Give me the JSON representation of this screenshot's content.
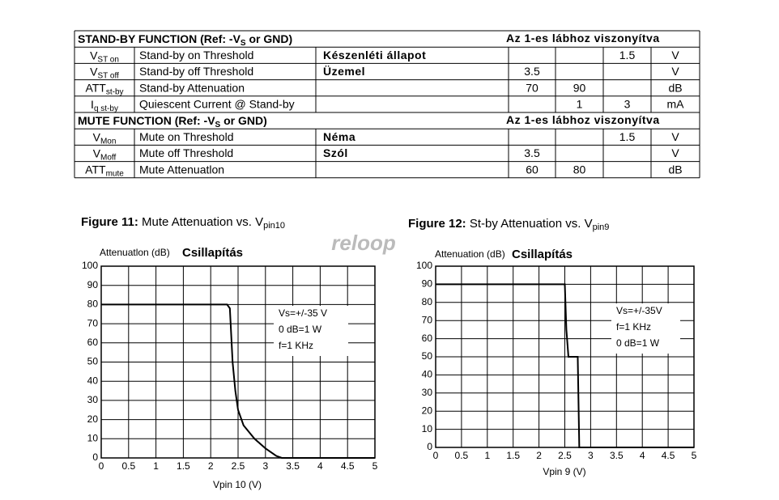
{
  "table": {
    "sections": [
      {
        "title": [
          "STAND-BY FUNCTION (Ref: -V",
          "S",
          " or GND)"
        ],
        "note": "Az 1-es lábhoz viszonyítva",
        "rows": [
          {
            "symbol": [
              "V",
              "ST on"
            ],
            "parameter": "Stand-by on Threshold",
            "note": "Készenléti állapot",
            "min": null,
            "typ": null,
            "max": 1.5,
            "unit": "V"
          },
          {
            "symbol": [
              "V",
              "ST off"
            ],
            "parameter": "Stand-by off Threshold",
            "note": "Üzemel",
            "min": 3.5,
            "typ": null,
            "max": null,
            "unit": "V"
          },
          {
            "symbol": [
              "ATT",
              "st-by"
            ],
            "parameter": "Stand-by Attenuation",
            "note": null,
            "min": 70,
            "typ": 90,
            "max": null,
            "unit": "dB"
          },
          {
            "symbol": [
              "I",
              "q st-by"
            ],
            "parameter": "Quiescent Current @ Stand-by",
            "note": null,
            "min": null,
            "typ": 1,
            "max": 3,
            "unit": "mA"
          }
        ]
      },
      {
        "title": [
          "MUTE FUNCTION (Ref: -V",
          "S",
          " or GND)"
        ],
        "note": "Az 1-es lábhoz viszonyítva",
        "rows": [
          {
            "symbol": [
              "V",
              "Mon"
            ],
            "parameter": "Mute on Threshold",
            "note": "Néma",
            "min": null,
            "typ": null,
            "max": 1.5,
            "unit": "V"
          },
          {
            "symbol": [
              "V",
              "Moff"
            ],
            "parameter": "Mute off Threshold",
            "note": "Szól",
            "min": 3.5,
            "typ": null,
            "max": null,
            "unit": "V"
          },
          {
            "symbol": [
              "ATT",
              "mute"
            ],
            "parameter": "Mute Attenuatlon",
            "note": null,
            "min": 60,
            "typ": 80,
            "max": null,
            "unit": "dB"
          }
        ]
      }
    ]
  },
  "watermark": "reloop",
  "chart_data": [
    {
      "type": "line",
      "title": [
        "Figure 11:",
        " Mute Attenuation vs. V",
        "pin10"
      ],
      "ylabel": "Attenuatlon  (dB)",
      "ylabel_hu": "Csillapítás",
      "xlabel": "Vpin 10 (V)",
      "annotations": [
        "Vs=+/-35 V",
        "0 dB=1 W",
        "f=1 KHz"
      ],
      "x": [
        0,
        2.3,
        2.35,
        2.4,
        2.45,
        2.5,
        2.6,
        2.8,
        3.0,
        3.2,
        3.3,
        5
      ],
      "values": [
        80,
        80,
        78,
        50,
        35,
        25,
        17,
        10,
        5,
        1,
        0,
        0
      ],
      "color": "#000000",
      "xlim": [
        0,
        5
      ],
      "xticks": [
        0,
        0.5,
        1,
        1.5,
        2,
        2.5,
        3,
        3.5,
        4,
        4.5,
        5
      ],
      "ylim": [
        0,
        100
      ],
      "yticks": [
        0,
        10,
        20,
        30,
        40,
        50,
        60,
        70,
        80,
        90,
        100
      ],
      "grid": true
    },
    {
      "type": "line",
      "title": [
        "Figure 12:",
        " St-by Attenuation vs. V",
        "pin9"
      ],
      "ylabel": "Attenuation  (dB)",
      "ylabel_hu": "Csillapítás",
      "xlabel": "Vpin 9  (V)",
      "annotations": [
        "Vs=+/-35V",
        "f=1 KHz",
        "0 dB=1 W"
      ],
      "x": [
        0,
        2.5,
        2.53,
        2.57,
        2.75,
        2.78,
        5
      ],
      "values": [
        90,
        90,
        65,
        50,
        50,
        0,
        0
      ],
      "color": "#000000",
      "xlim": [
        0,
        5
      ],
      "xticks": [
        0,
        0.5,
        1,
        1.5,
        2,
        2.5,
        3,
        3.5,
        4,
        4.5,
        5
      ],
      "ylim": [
        0,
        100
      ],
      "yticks": [
        0,
        10,
        20,
        30,
        40,
        50,
        60,
        70,
        80,
        90,
        100
      ],
      "grid": true
    }
  ]
}
